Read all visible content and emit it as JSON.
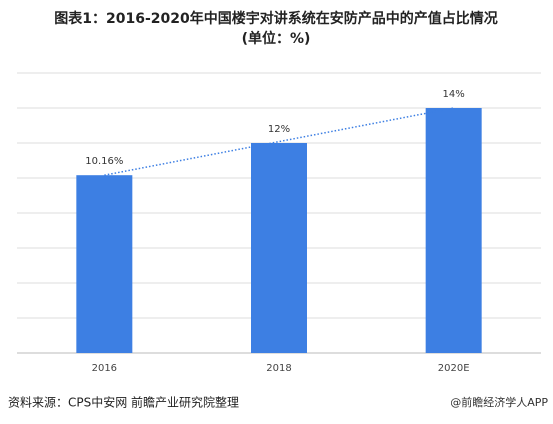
{
  "chart_data": {
    "type": "bar",
    "title": "图表1：2016-2020年中国楼宇对讲系统在安防产品中的产值占比情况",
    "subtitle": "(单位：%)",
    "categories": [
      "2016",
      "2018",
      "2020E"
    ],
    "values": [
      10.16,
      12,
      14
    ],
    "value_labels": [
      "10.16%",
      "12%",
      "14%"
    ],
    "color": "#3d7fe3",
    "ylim": [
      0,
      16
    ],
    "yticks": [
      0,
      2,
      4,
      6,
      8,
      10,
      12,
      14,
      16
    ],
    "grid": true,
    "source": "资料来源：CPS中安网 前瞻产业研究院整理",
    "watermark": "@前瞻经济学人APP"
  }
}
